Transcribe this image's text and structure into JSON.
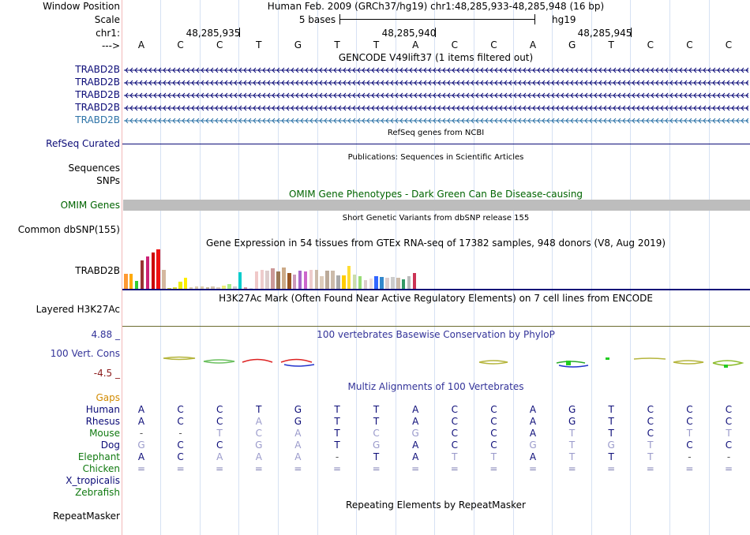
{
  "header": {
    "window_position_label": "Window Position",
    "scale_label": "Scale",
    "chrom_label": "chr1:",
    "arrow_label": "--->",
    "position_title": "Human Feb. 2009 (GRCh37/hg19)   chr1:48,285,933-48,285,948 (16 bp)",
    "scale_text": "5 bases",
    "assembly": "hg19",
    "ticks": [
      "48,285,935",
      "48,285,940",
      "48,285,945"
    ]
  },
  "bases": [
    "A",
    "C",
    "C",
    "T",
    "G",
    "T",
    "T",
    "A",
    "C",
    "C",
    "A",
    "G",
    "T",
    "C",
    "C",
    "C"
  ],
  "tracks": {
    "gencode": {
      "title": "GENCODE V49lift37 (1 items filtered out)",
      "transcripts": [
        "TRABD2B",
        "TRABD2B",
        "TRABD2B",
        "TRABD2B",
        "TRABD2B"
      ],
      "color": "#0c0c78",
      "alt_color": "#2d73a7"
    },
    "refseq": {
      "title": "RefSeq genes from NCBI",
      "label": "RefSeq Curated",
      "color": "#0c0c78"
    },
    "publications": {
      "title": "Publications: Sequences in Scientific Articles",
      "labels": [
        "Sequences",
        "SNPs"
      ]
    },
    "omim": {
      "title": "OMIM Gene Phenotypes - Dark Green Can Be Disease-causing",
      "label": "OMIM Genes",
      "color": "#006400"
    },
    "dbsnp": {
      "title": "Short Genetic Variants from dbSNP release 155",
      "label": "Common dbSNP(155)"
    },
    "gtex": {
      "title": "Gene Expression in 54 tissues from GTEx RNA-seq of 17382 samples, 948 donors (V8, Aug 2019)",
      "label": "TRABD2B",
      "values": [
        0.38,
        0.38,
        0.2,
        0.72,
        0.82,
        0.92,
        1.0,
        0.48,
        0.02,
        0.04,
        0.18,
        0.28,
        0.04,
        0.06,
        0.06,
        0.04,
        0.06,
        0.04,
        0.08,
        0.12,
        0.06,
        0.42,
        0.04,
        0.02,
        0.44,
        0.48,
        0.46,
        0.52,
        0.44,
        0.54,
        0.4,
        0.36,
        0.46,
        0.44,
        0.48,
        0.48,
        0.32,
        0.46,
        0.46,
        0.34,
        0.34,
        0.58,
        0.36,
        0.32,
        0.22,
        0.26,
        0.32,
        0.3,
        0.28,
        0.3,
        0.28,
        0.24,
        0.32,
        0.4
      ],
      "colors": [
        "#ff9933",
        "#ffaa00",
        "#33cc33",
        "#993333",
        "#cc2277",
        "#cc0000",
        "#ee1111",
        "#d4b8a0",
        "#cccc44",
        "#dddd33",
        "#eeee00",
        "#ffee00",
        "#ddccaa",
        "#ddccaa",
        "#ddccaa",
        "#ccbb99",
        "#d4c4aa",
        "#e0d0bb",
        "#eeee77",
        "#aaee88",
        "#cccccc",
        "#00cccc",
        "#dd9999",
        "#dddddd",
        "#f0c8c8",
        "#eecccc",
        "#ddcccc",
        "#cc9999",
        "#997755",
        "#ccaa88",
        "#995522",
        "#cc99bb",
        "#aa66cc",
        "#cc66cc",
        "#eecccc",
        "#ccbbaa",
        "#ddccbb",
        "#bbaa99",
        "#ccbbaa",
        "#aaaaaa",
        "#ffcc00",
        "#ffdd33",
        "#ccddaa",
        "#99dd77",
        "#ddcccc",
        "#eedddd",
        "#3366ff",
        "#3388cc",
        "#ddcccc",
        "#cccccc",
        "#ccbbaa",
        "#339966",
        "#bbbbbb",
        "#cc3355"
      ]
    },
    "h3k27ac": {
      "title": "H3K27Ac Mark (Often Found Near Active Regulatory Elements) on 7 cell lines from ENCODE",
      "label": "Layered H3K27Ac"
    },
    "phylop": {
      "title": "100 vertebrates Basewise Conservation by PhyloP",
      "label": "100 Vert. Cons",
      "max": "4.88 _",
      "min": "-4.5 _",
      "title_color": "#333399"
    },
    "multiz": {
      "title": "Multiz Alignments of 100 Vertebrates",
      "gaps_label": "Gaps",
      "species": [
        {
          "name": "Human",
          "seq": [
            "A",
            "C",
            "C",
            "T",
            "G",
            "T",
            "T",
            "A",
            "C",
            "C",
            "A",
            "G",
            "T",
            "C",
            "C",
            "C"
          ]
        },
        {
          "name": "Rhesus",
          "seq": [
            "A",
            "C",
            "C",
            "A",
            "G",
            "T",
            "T",
            "A",
            "C",
            "C",
            "A",
            "G",
            "T",
            "C",
            "C",
            "C"
          ]
        },
        {
          "name": "Mouse",
          "seq": [
            "-",
            "-",
            "T",
            "C",
            "A",
            "T",
            "C",
            "G",
            "C",
            "C",
            "A",
            "T",
            "T",
            "C",
            "T",
            "T"
          ]
        },
        {
          "name": "Dog",
          "seq": [
            "G",
            "C",
            "C",
            "G",
            "A",
            "T",
            "G",
            "A",
            "C",
            "C",
            "G",
            "T",
            "G",
            "T",
            "C",
            "C"
          ]
        },
        {
          "name": "Elephant",
          "seq": [
            "A",
            "C",
            "A",
            "A",
            "A",
            "-",
            "T",
            "A",
            "T",
            "T",
            "A",
            "T",
            "T",
            "T",
            "-",
            "-"
          ]
        },
        {
          "name": "Chicken",
          "seq": [
            "=",
            "=",
            "=",
            "=",
            "=",
            "=",
            "=",
            "=",
            "=",
            "=",
            "=",
            "=",
            "=",
            "=",
            "=",
            "="
          ]
        },
        {
          "name": "X_tropicalis",
          "seq": []
        },
        {
          "name": "Zebrafish",
          "seq": []
        }
      ]
    },
    "repeatmasker": {
      "title": "Repeating Elements by RepeatMasker",
      "label": "RepeatMasker"
    }
  }
}
